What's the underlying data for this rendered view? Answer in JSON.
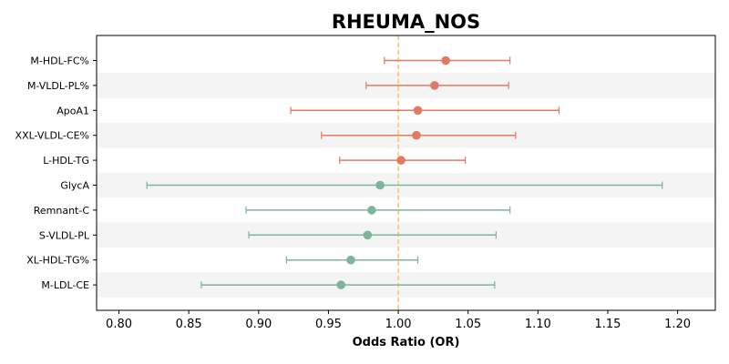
{
  "chart_data": {
    "type": "forest",
    "title": "RHEUMA_NOS",
    "xlabel": "Odds Ratio (OR)",
    "xlim": [
      0.784,
      1.227
    ],
    "xticks": [
      0.8,
      0.85,
      0.9,
      0.95,
      1.0,
      1.05,
      1.1,
      1.15,
      1.2
    ],
    "xtick_labels": [
      "0.80",
      "0.85",
      "0.90",
      "0.95",
      "1.00",
      "1.05",
      "1.10",
      "1.15",
      "1.20"
    ],
    "reference_line": 1.0,
    "grid": false,
    "colors": {
      "positive": "#e07b62",
      "negative": "#7fb39a",
      "reference": "#f3c87a",
      "band": "#f4f4f4"
    },
    "rows": [
      {
        "label": "M-HDL-FC%",
        "or": 1.034,
        "lower": 0.99,
        "upper": 1.08,
        "effect": "positive"
      },
      {
        "label": "M-VLDL-PL%",
        "or": 1.026,
        "lower": 0.977,
        "upper": 1.079,
        "effect": "positive"
      },
      {
        "label": "ApoA1",
        "or": 1.014,
        "lower": 0.923,
        "upper": 1.115,
        "effect": "positive"
      },
      {
        "label": "XXL-VLDL-CE%",
        "or": 1.013,
        "lower": 0.945,
        "upper": 1.084,
        "effect": "positive"
      },
      {
        "label": "L-HDL-TG",
        "or": 1.002,
        "lower": 0.958,
        "upper": 1.048,
        "effect": "positive"
      },
      {
        "label": "GlycA",
        "or": 0.987,
        "lower": 0.82,
        "upper": 1.189,
        "effect": "negative"
      },
      {
        "label": "Remnant-C",
        "or": 0.981,
        "lower": 0.891,
        "upper": 1.08,
        "effect": "negative"
      },
      {
        "label": "S-VLDL-PL",
        "or": 0.978,
        "lower": 0.893,
        "upper": 1.07,
        "effect": "negative"
      },
      {
        "label": "XL-HDL-TG%",
        "or": 0.966,
        "lower": 0.92,
        "upper": 1.014,
        "effect": "negative"
      },
      {
        "label": "M-LDL-CE",
        "or": 0.959,
        "lower": 0.859,
        "upper": 1.069,
        "effect": "negative"
      }
    ]
  }
}
